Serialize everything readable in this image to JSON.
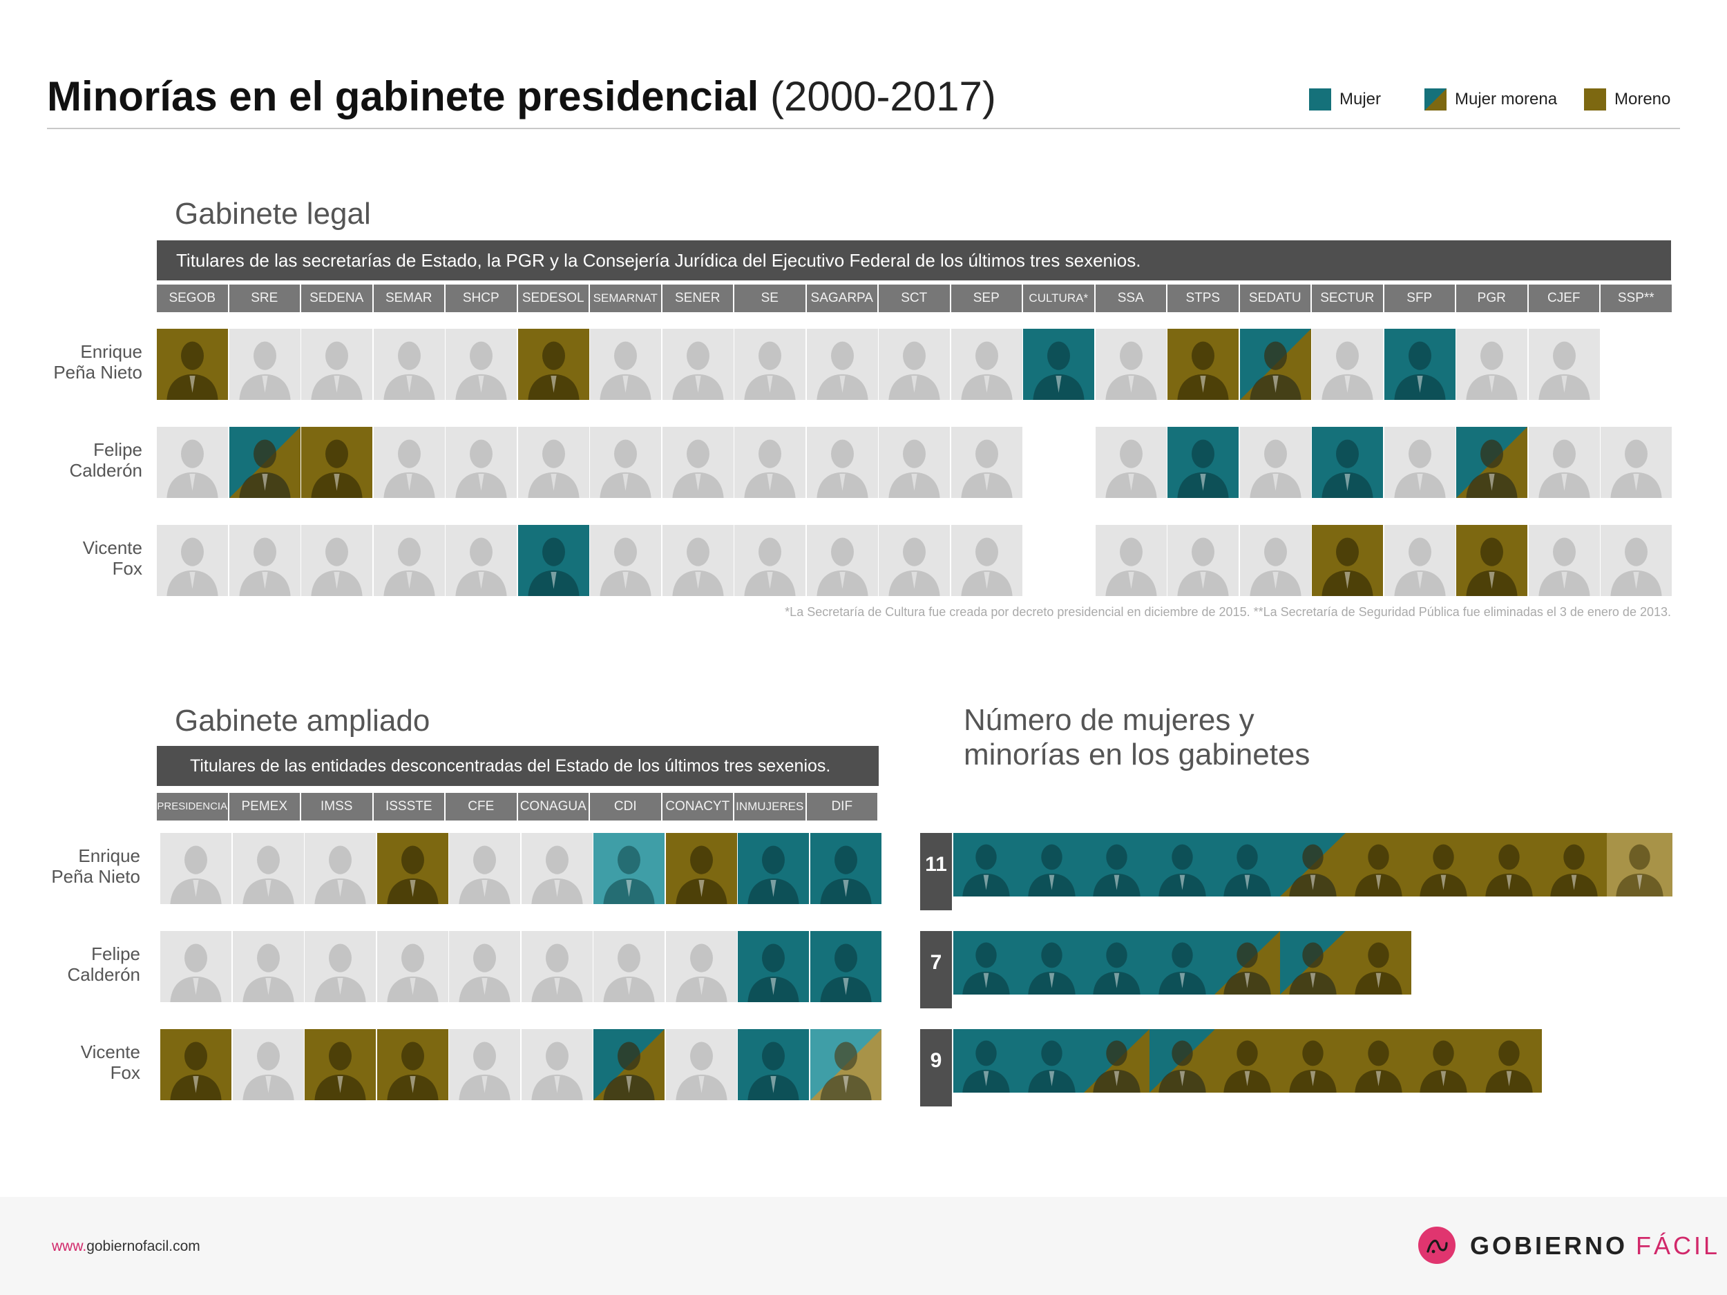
{
  "header": {
    "title_bold": "Minorías en el gabinete presidencial",
    "title_light": "(2000-2017)"
  },
  "legend": [
    {
      "label": "Mujer",
      "color": "#15717a",
      "style": "solid"
    },
    {
      "label": "Mujer morena",
      "color": "#15717a",
      "color2": "#7d6811",
      "style": "diagonal"
    },
    {
      "label": "Moreno",
      "color": "#7d6811",
      "style": "solid"
    }
  ],
  "colors": {
    "mujer": "#15717a",
    "moreno": "#7d6811",
    "mujer_light": "#3f9ea7",
    "moreno_light": "#a89348",
    "neutral": "#e4e4e4",
    "bar": "#4f4f4f"
  },
  "presidents": [
    "Enrique\nPeña Nieto",
    "Felipe\nCalderón",
    "Vicente\nFox"
  ],
  "legal": {
    "title": "Gabinete legal",
    "banner": "Titulares de las secretarías de Estado, la PGR y la Consejería Jurídica del Ejecutivo Federal de los últimos tres sexenios.",
    "columns": [
      "SEGOB",
      "SRE",
      "SEDENA",
      "SEMAR",
      "SHCP",
      "SEDESOL",
      "SEMARNAT",
      "SENER",
      "SE",
      "SAGARPA",
      "SCT",
      "SEP",
      "CULTURA*",
      "SSA",
      "STPS",
      "SEDATU",
      "SECTUR",
      "SFP",
      "PGR",
      "CJEF",
      "SSP**"
    ],
    "rows": [
      [
        "moreno",
        "neutral",
        "neutral",
        "neutral",
        "neutral",
        "moreno",
        "neutral",
        "neutral",
        "neutral",
        "neutral",
        "neutral",
        "neutral",
        "mujer",
        "neutral",
        "moreno",
        "mujer_morena",
        "neutral",
        "mujer",
        "neutral",
        "neutral",
        "empty"
      ],
      [
        "neutral",
        "mujer_morena",
        "moreno",
        "neutral",
        "neutral",
        "neutral",
        "neutral",
        "neutral",
        "neutral",
        "neutral",
        "neutral",
        "neutral",
        "empty",
        "neutral",
        "mujer",
        "neutral",
        "mujer",
        "neutral",
        "mujer_morena",
        "neutral",
        "neutral"
      ],
      [
        "neutral",
        "neutral",
        "neutral",
        "neutral",
        "neutral",
        "mujer",
        "neutral",
        "neutral",
        "neutral",
        "neutral",
        "neutral",
        "neutral",
        "empty",
        "neutral",
        "neutral",
        "neutral",
        "moreno",
        "neutral",
        "moreno",
        "neutral",
        "neutral"
      ]
    ],
    "note": "*La Secretaría de Cultura fue creada por decreto presidencial en diciembre de 2015. **La Secretaría de Seguridad Pública fue eliminadas el 3 de enero de 2013."
  },
  "ampliado": {
    "title": "Gabinete ampliado",
    "banner": "Titulares de las entidades desconcentradas del Estado de los últimos tres sexenios.",
    "columns": [
      "PRESIDENCIA",
      "PEMEX",
      "IMSS",
      "ISSSTE",
      "CFE",
      "CONAGUA",
      "CDI",
      "CONACYT",
      "INMUJERES",
      "DIF"
    ],
    "rows": [
      [
        "neutral",
        "neutral",
        "neutral",
        "moreno",
        "neutral",
        "neutral",
        "mujer_light",
        "moreno",
        "mujer",
        "mujer"
      ],
      [
        "neutral",
        "neutral",
        "neutral",
        "neutral",
        "neutral",
        "neutral",
        "neutral",
        "neutral",
        "mujer",
        "mujer"
      ],
      [
        "moreno",
        "neutral",
        "moreno",
        "moreno",
        "neutral",
        "neutral",
        "mujer_morena",
        "neutral",
        "mujer",
        "mujer_morena_light"
      ]
    ]
  },
  "numero": {
    "title": "Número de mujeres y\nminorías en los gabinetes",
    "rows": [
      {
        "count": "11",
        "cells": [
          "mujer",
          "mujer",
          "mujer",
          "mujer",
          "mujer",
          "mujer_morena",
          "moreno",
          "moreno",
          "moreno",
          "moreno",
          "moreno_light"
        ]
      },
      {
        "count": "7",
        "cells": [
          "mujer",
          "mujer",
          "mujer",
          "mujer",
          "mujer_morena",
          "mujer_morena",
          "moreno"
        ]
      },
      {
        "count": "9",
        "cells": [
          "mujer",
          "mujer",
          "mujer_morena",
          "mujer_morena",
          "moreno",
          "moreno",
          "moreno",
          "moreno",
          "moreno"
        ]
      }
    ]
  },
  "footer": {
    "site_prefix": "www.",
    "site_rest": "gobiernofacil.com",
    "brand_bold": "GOBIERNO",
    "brand_light": "FÁCIL",
    "logo_color": "#e0356f"
  }
}
